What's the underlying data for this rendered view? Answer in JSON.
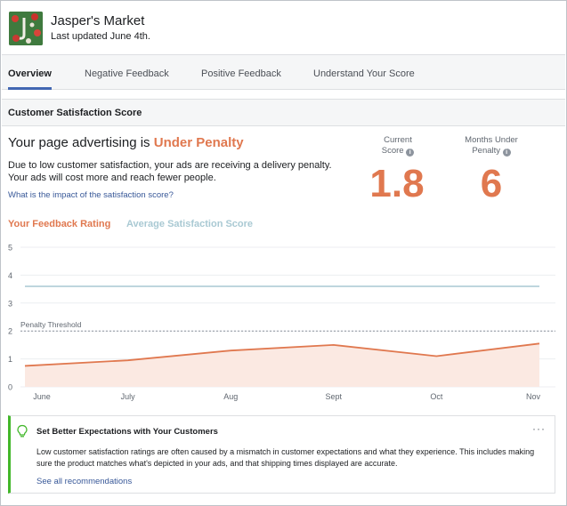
{
  "page": {
    "name": "Jasper's Market",
    "updated": "Last updated June 4th."
  },
  "tabs": [
    {
      "label": "Overview",
      "active": true
    },
    {
      "label": "Negative Feedback",
      "active": false
    },
    {
      "label": "Positive Feedback",
      "active": false
    },
    {
      "label": "Understand Your Score",
      "active": false
    }
  ],
  "section_title": "Customer Satisfaction Score",
  "status": {
    "prefix": "Your page advertising is",
    "label": "Under Penalty",
    "description": "Due to low customer satisfaction, your ads are receiving a delivery penalty. Your ads will cost more and reach fewer people.",
    "impact_link": "What is the impact of the satisfaction score?"
  },
  "metrics": {
    "current_label_1": "Current",
    "current_label_2": "Score",
    "current_value": "1.8",
    "months_label_1": "Months Under",
    "months_label_2": "Penalty",
    "months_value": "6"
  },
  "colors": {
    "accent": "#e0784f",
    "average": "#a9c9d3",
    "link": "#385898",
    "tab_active": "#4267b2",
    "tip": "#42b72a"
  },
  "chart_data": {
    "type": "line",
    "legend": [
      "Your Feedback Rating",
      "Average Satisfaction Score"
    ],
    "categories": [
      "June",
      "July",
      "Aug",
      "Sept",
      "Oct",
      "Nov"
    ],
    "ylim": [
      0,
      5
    ],
    "yticks": [
      "0",
      "1",
      "2",
      "3",
      "4",
      "5"
    ],
    "threshold": {
      "label": "Penalty Threshold",
      "value": 2
    },
    "series": [
      {
        "name": "Your Feedback Rating",
        "values": [
          0.75,
          0.95,
          1.3,
          1.5,
          1.1,
          1.55
        ],
        "color": "#e0784f"
      },
      {
        "name": "Average Satisfaction Score",
        "values": [
          3.6,
          3.6,
          3.6,
          3.6,
          3.6,
          3.6
        ],
        "color": "#a9c9d3"
      }
    ],
    "grid": true
  },
  "recommendation": {
    "icon": "lightbulb-icon",
    "title": "Set Better Expectations with Your Customers",
    "more": "···",
    "body": "Low customer satisfaction ratings are often caused by a mismatch in customer expectations and what they experience. This includes making sure the product matches what's depicted in your ads, and that shipping times displayed are accurate.",
    "link": "See all recommendations"
  }
}
